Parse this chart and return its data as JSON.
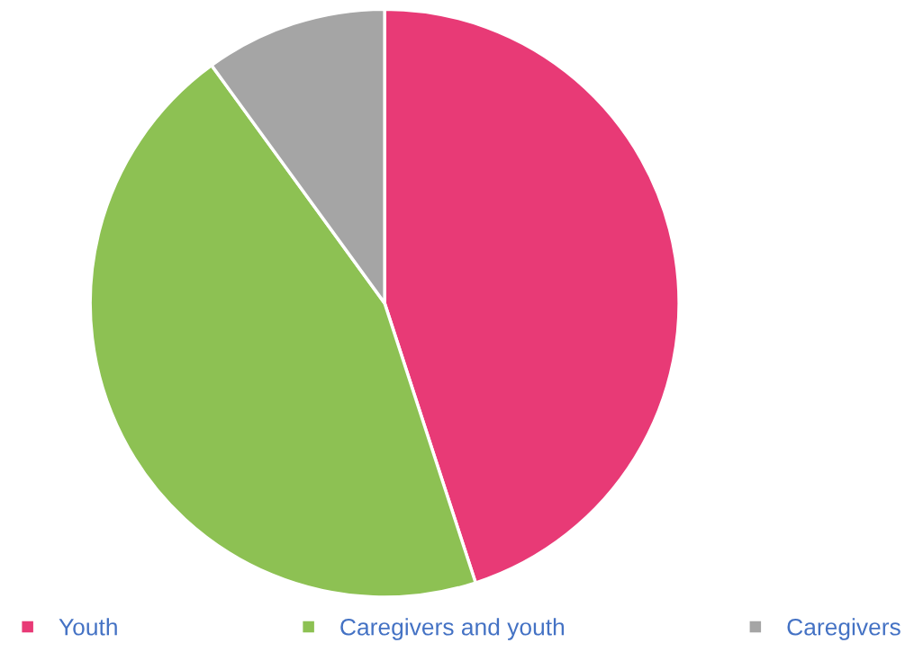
{
  "chart_data": {
    "type": "pie",
    "categories": [
      "Youth",
      "Caregivers and youth",
      "Caregivers"
    ],
    "values": [
      45,
      45,
      10
    ],
    "colors": [
      "#e83a76",
      "#8dc153",
      "#a5a5a5"
    ],
    "legend": "bottom"
  }
}
